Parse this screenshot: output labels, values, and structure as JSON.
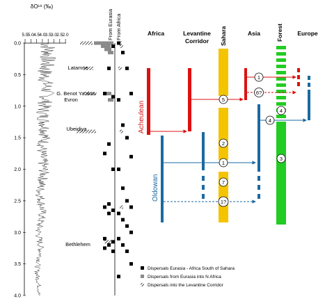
{
  "d18o_axis": {
    "label": "δO¹⁸ (‰)",
    "ticks": [
      "5.5",
      "5.0",
      "4.5",
      "4.0",
      "3.5",
      "3.0",
      "2.5",
      "2.0"
    ]
  },
  "age_axis": {
    "ticks": [
      "0.0",
      "0.5",
      "1.0",
      "1.5",
      "2.0",
      "2.5",
      "3.0",
      "3.5",
      "4.0"
    ]
  },
  "dispersal_columns": [
    "From Eurasia",
    "From Africa"
  ],
  "sites": [
    {
      "name": "Latamne",
      "age": 0.4
    },
    {
      "name": "G. Benot Ya'akov",
      "age": 0.78
    },
    {
      "name": "Evron",
      "age": 0.9
    },
    {
      "name": "Ubeidiya",
      "age": 1.4
    },
    {
      "name": "Bethlehem",
      "age": 3.15
    }
  ],
  "regions": [
    "Africa",
    "Levantine Corridor",
    "Sahara",
    "Asia",
    "Forest",
    "Europe"
  ],
  "industries": {
    "acheulean": "Acheulean",
    "oldowan": "Oldowan"
  },
  "events": [
    "1",
    "1?",
    "2",
    "4",
    "4",
    "5",
    "6",
    "6?",
    "7",
    "3"
  ],
  "legend": [
    "Dispersals Eurasia -  Africa South of Sahara",
    "Dispersals from Eurasia into N Africa",
    "Dispersals into the Levantine Corridor"
  ],
  "colors": {
    "acheulean": "#dd1111",
    "oldowan": "#1a6aa0",
    "sahara": "#f5c400",
    "forest": "#22cc22"
  }
}
